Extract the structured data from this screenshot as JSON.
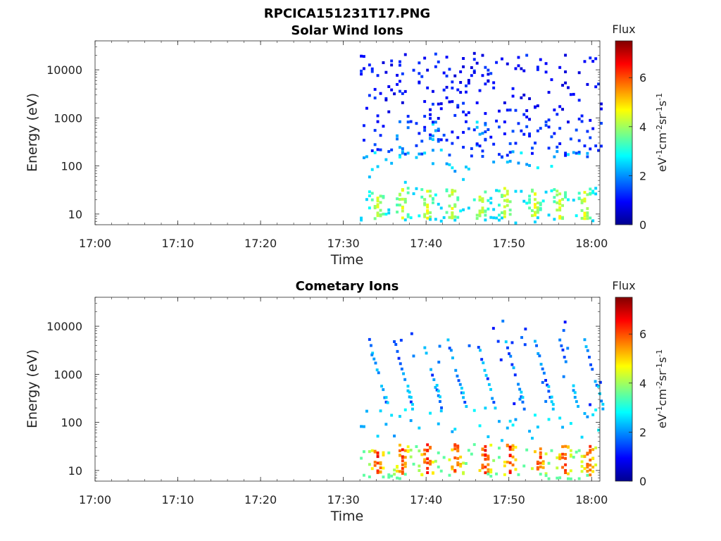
{
  "figure_title": "RPCICA151231T17.PNG",
  "colors": {
    "axis": "#262626",
    "colormap": "jet"
  },
  "chart_data": [
    {
      "type": "heatmap",
      "title": "Solar Wind Ions",
      "xlabel": "Time",
      "ylabel": "Energy (eV)",
      "x_ticks": [
        "17:00",
        "17:10",
        "17:20",
        "17:30",
        "17:40",
        "17:50",
        "18:00"
      ],
      "xlim": [
        "17:00",
        "18:01"
      ],
      "y_scale": "log",
      "y_ticks": [
        "10",
        "100",
        "1000",
        "10000"
      ],
      "ylim": [
        6,
        40000
      ],
      "colorbar": {
        "label": "Flux",
        "unit_label": "eV-1cm-2sr-1s-1",
        "ticks": [
          "0",
          "2",
          "4",
          "6"
        ],
        "range": [
          0,
          7.5
        ]
      },
      "data_start": "17:32",
      "data_end": "18:01",
      "low_energy_band": {
        "energy_range": [
          8,
          35
        ],
        "flux_range": [
          2.5,
          4.8
        ],
        "peak_times": [
          "17:34",
          "17:37",
          "17:40",
          "17:43",
          "17:46.5",
          "17:49.5",
          "17:53",
          "17:56",
          "17:59"
        ]
      },
      "mid_energy_band": {
        "energy_range": [
          150,
          900
        ],
        "flux_range": [
          1.0,
          2.8
        ],
        "peak_times": [
          "17:37",
          "17:41",
          "17:46.5"
        ]
      },
      "sparse_high_energy": {
        "energy_range": [
          800,
          22000
        ],
        "flux_range": [
          0.6,
          1.4
        ]
      }
    },
    {
      "type": "heatmap",
      "title": "Cometary Ions",
      "xlabel": "Time",
      "ylabel": "Energy (eV)",
      "x_ticks": [
        "17:00",
        "17:10",
        "17:20",
        "17:30",
        "17:40",
        "17:50",
        "18:00"
      ],
      "xlim": [
        "17:00",
        "18:01"
      ],
      "y_scale": "log",
      "y_ticks": [
        "10",
        "100",
        "1000",
        "10000"
      ],
      "ylim": [
        6,
        40000
      ],
      "colorbar": {
        "label": "Flux",
        "unit_label": "eV-1cm-2sr-1s-1",
        "ticks": [
          "0",
          "2",
          "4",
          "6"
        ],
        "range": [
          0,
          7.5
        ]
      },
      "data_start": "17:32",
      "data_end": "18:01",
      "low_energy_band": {
        "energy_range": [
          8,
          35
        ],
        "flux_range": [
          3.5,
          6.8
        ],
        "peak_times": [
          "17:34",
          "17:37",
          "17:40",
          "17:43.5",
          "17:47",
          "17:50",
          "17:53.5",
          "17:56.5",
          "17:59.5"
        ]
      },
      "dispersed_streaks": {
        "start_energy": 5000,
        "end_energy": 200,
        "flux_range": [
          1.2,
          2.5
        ],
        "start_times": [
          "17:33",
          "17:36",
          "17:39.5",
          "17:42.5",
          "17:46",
          "17:49.5",
          "17:53",
          "17:56",
          "17:59"
        ]
      }
    }
  ]
}
